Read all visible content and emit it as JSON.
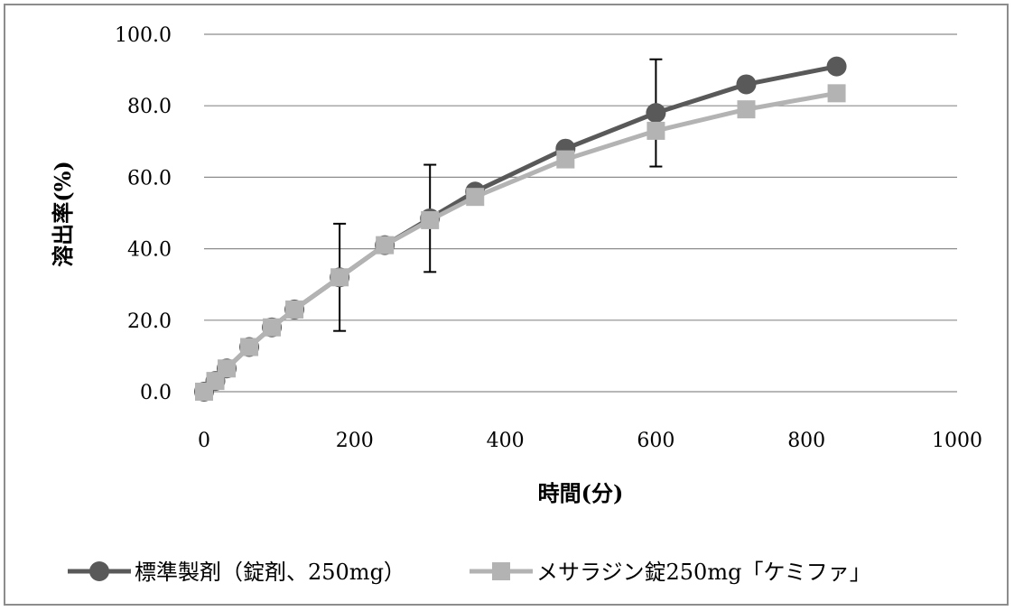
{
  "chart_data": {
    "type": "line",
    "title": "",
    "xlabel": "時間(分)",
    "ylabel": "溶出率(%)",
    "xlim": [
      0,
      1000
    ],
    "ylim": [
      0,
      100
    ],
    "xticks": [
      "0",
      "200",
      "400",
      "600",
      "800",
      "1000"
    ],
    "yticks": [
      "0.0",
      "20.0",
      "40.0",
      "60.0",
      "80.0",
      "100.0"
    ],
    "grid": "horizontal",
    "legend_position": "bottom",
    "series": [
      {
        "name": "標準製剤（錠剤、250mg）",
        "marker": "circle",
        "color": "#595959",
        "x": [
          0,
          15,
          30,
          60,
          90,
          120,
          180,
          240,
          300,
          360,
          480,
          600,
          720,
          840
        ],
        "y": [
          0.0,
          3.0,
          6.5,
          12.5,
          18.0,
          23.0,
          32.0,
          41.0,
          48.5,
          56.0,
          68.0,
          78.0,
          86.0,
          91.0
        ],
        "error": [
          null,
          null,
          null,
          null,
          null,
          null,
          15.0,
          null,
          15.0,
          null,
          null,
          15.0,
          null,
          null
        ]
      },
      {
        "name": "メサラジン錠250mg「ケミファ」",
        "marker": "square",
        "color": "#b3b3b3",
        "x": [
          0,
          15,
          30,
          60,
          90,
          120,
          180,
          240,
          300,
          360,
          480,
          600,
          720,
          840
        ],
        "y": [
          0.0,
          3.0,
          6.5,
          12.5,
          18.0,
          23.0,
          32.0,
          41.0,
          48.0,
          54.5,
          65.0,
          73.0,
          79.0,
          83.5
        ]
      }
    ]
  }
}
